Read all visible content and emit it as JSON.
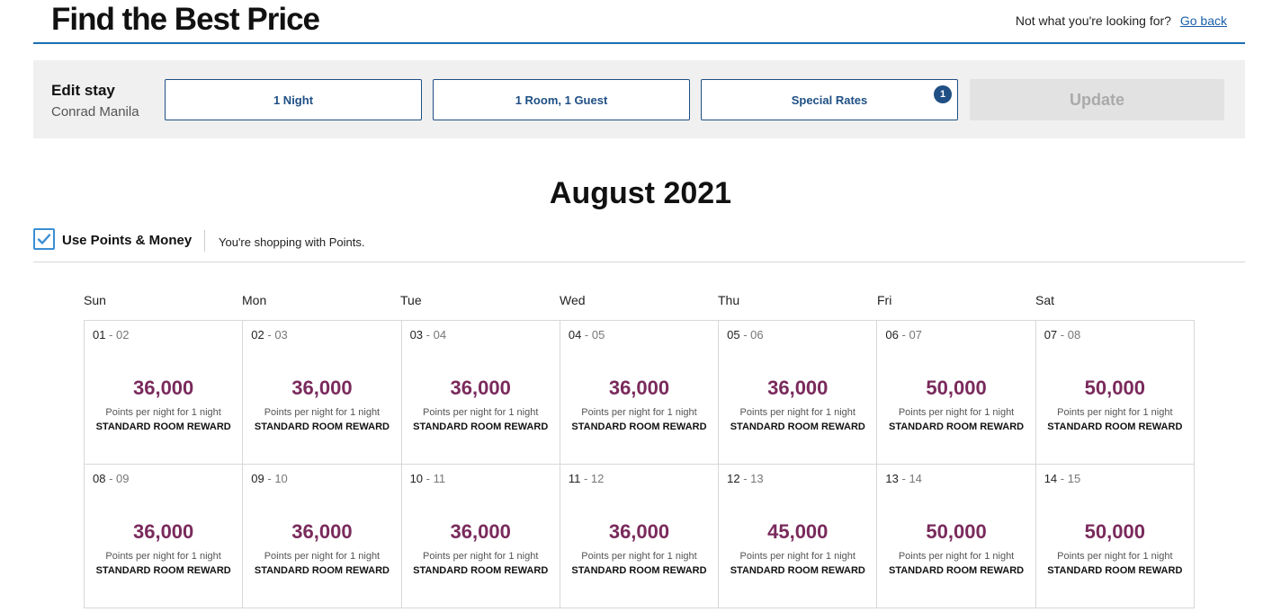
{
  "header": {
    "title": "Find the Best Price",
    "prompt": "Not what you're looking for?",
    "go_back": "Go back"
  },
  "edit_stay": {
    "label": "Edit stay",
    "hotel": "Conrad Manila",
    "nights": "1 Night",
    "rooms_guests": "1 Room, 1 Guest",
    "special_rates": "Special Rates",
    "special_rates_badge": "1",
    "update": "Update"
  },
  "calendar": {
    "month": "August 2021",
    "use_points_label": "Use Points & Money",
    "use_points_checked": true,
    "shopping_msg": "You're shopping with Points.",
    "days_of_week": [
      "Sun",
      "Mon",
      "Tue",
      "Wed",
      "Thu",
      "Fri",
      "Sat"
    ],
    "weeks": [
      [
        {
          "d1": "01",
          "d2": "02",
          "price": "36,000",
          "note": "Points per night for 1 night",
          "type": "STANDARD ROOM REWARD"
        },
        {
          "d1": "02",
          "d2": "03",
          "price": "36,000",
          "note": "Points per night for 1 night",
          "type": "STANDARD ROOM REWARD"
        },
        {
          "d1": "03",
          "d2": "04",
          "price": "36,000",
          "note": "Points per night for 1 night",
          "type": "STANDARD ROOM REWARD"
        },
        {
          "d1": "04",
          "d2": "05",
          "price": "36,000",
          "note": "Points per night for 1 night",
          "type": "STANDARD ROOM REWARD"
        },
        {
          "d1": "05",
          "d2": "06",
          "price": "36,000",
          "note": "Points per night for 1 night",
          "type": "STANDARD ROOM REWARD"
        },
        {
          "d1": "06",
          "d2": "07",
          "price": "50,000",
          "note": "Points per night for 1 night",
          "type": "STANDARD ROOM REWARD"
        },
        {
          "d1": "07",
          "d2": "08",
          "price": "50,000",
          "note": "Points per night for 1 night",
          "type": "STANDARD ROOM REWARD"
        }
      ],
      [
        {
          "d1": "08",
          "d2": "09",
          "price": "36,000",
          "note": "Points per night for 1 night",
          "type": "STANDARD ROOM REWARD"
        },
        {
          "d1": "09",
          "d2": "10",
          "price": "36,000",
          "note": "Points per night for 1 night",
          "type": "STANDARD ROOM REWARD"
        },
        {
          "d1": "10",
          "d2": "11",
          "price": "36,000",
          "note": "Points per night for 1 night",
          "type": "STANDARD ROOM REWARD"
        },
        {
          "d1": "11",
          "d2": "12",
          "price": "36,000",
          "note": "Points per night for 1 night",
          "type": "STANDARD ROOM REWARD"
        },
        {
          "d1": "12",
          "d2": "13",
          "price": "45,000",
          "note": "Points per night for 1 night",
          "type": "STANDARD ROOM REWARD"
        },
        {
          "d1": "13",
          "d2": "14",
          "price": "50,000",
          "note": "Points per night for 1 night",
          "type": "STANDARD ROOM REWARD"
        },
        {
          "d1": "14",
          "d2": "15",
          "price": "50,000",
          "note": "Points per night for 1 night",
          "type": "STANDARD ROOM REWARD"
        }
      ]
    ]
  },
  "colors": {
    "accent": "#1a6fb5",
    "price": "#7a2a5c",
    "button_border": "#1f4f84"
  },
  "icons": {
    "checkbox": "checkmark-icon"
  }
}
